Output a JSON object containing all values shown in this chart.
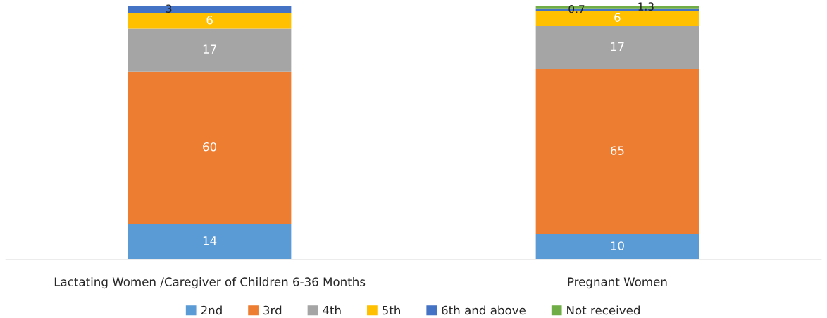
{
  "chart_data": {
    "type": "bar",
    "stacked": true,
    "data_labels": true,
    "legend": "bottom",
    "categories": [
      "Lactating Women /Caregiver of Children 6-36 Months",
      "Pregnant Women"
    ],
    "series": [
      {
        "name": "2nd",
        "color": "#5b9bd5",
        "values": [
          14,
          10
        ]
      },
      {
        "name": "3rd",
        "color": "#ed7d31",
        "values": [
          60,
          65
        ]
      },
      {
        "name": "4th",
        "color": "#a5a5a5",
        "values": [
          17,
          17
        ]
      },
      {
        "name": "5th",
        "color": "#ffc000",
        "values": [
          6,
          6
        ]
      },
      {
        "name": "6th and above",
        "color": "#4472c4",
        "values": [
          3,
          0.7
        ]
      },
      {
        "name": "Not received",
        "color": "#70ad47",
        "values": [
          null,
          1.3
        ]
      }
    ]
  }
}
